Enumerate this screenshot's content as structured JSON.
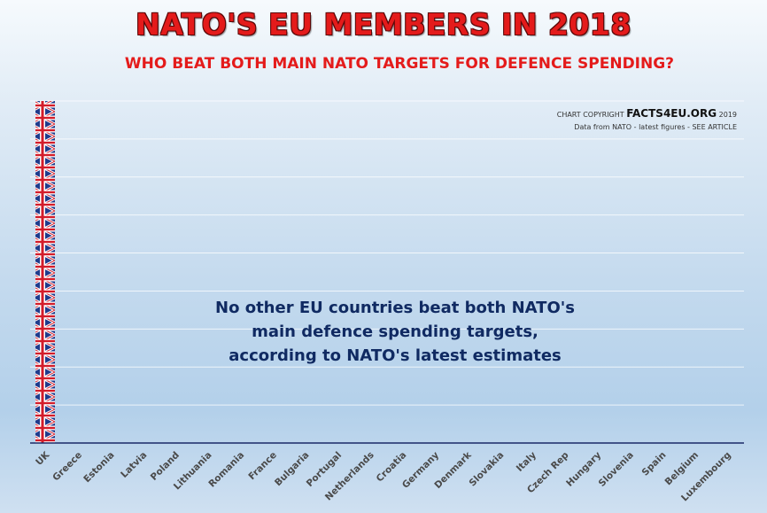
{
  "title": "NATO'S EU MEMBERS IN 2018",
  "subtitle": "WHO BEAT BOTH MAIN NATO TARGETS FOR DEFENCE SPENDING?",
  "copyright": {
    "prefix": "CHART COPYRIGHT",
    "brand": "FACTS4EU.ORG",
    "year": "2019",
    "source": "Data from NATO - latest figures - SEE ARTICLE"
  },
  "annotation": {
    "line1": "No other EU countries beat both NATO's",
    "line2": "main defence spending targets,",
    "line3": "according to NATO's latest estimates"
  },
  "chart_data": {
    "type": "bar",
    "title": "NATO'S EU MEMBERS IN 2018",
    "subtitle": "WHO BEAT BOTH MAIN NATO TARGETS FOR DEFENCE SPENDING?",
    "xlabel": "",
    "ylabel": "",
    "categories": [
      "UK",
      "Greece",
      "Estonia",
      "Latvia",
      "Poland",
      "Lithuania",
      "Romania",
      "France",
      "Bulgaria",
      "Portugal",
      "Netherlands",
      "Croatia",
      "Germany",
      "Denmark",
      "Slovakia",
      "Italy",
      "Czech Rep",
      "Hungary",
      "Slovenia",
      "Spain",
      "Belgium",
      "Luxembourg"
    ],
    "values": [
      1,
      0,
      0,
      0,
      0,
      0,
      0,
      0,
      0,
      0,
      0,
      0,
      0,
      0,
      0,
      0,
      0,
      0,
      0,
      0,
      0,
      0
    ],
    "ylim": [
      0,
      1
    ],
    "grid": true,
    "bar_fill": "union-flag pattern",
    "colors": {
      "title": "#e41b1b",
      "annotation": "#102a62",
      "axis": "#1a2a66",
      "flag_blue": "#1f3b8c",
      "flag_red": "#d31c2a"
    }
  }
}
